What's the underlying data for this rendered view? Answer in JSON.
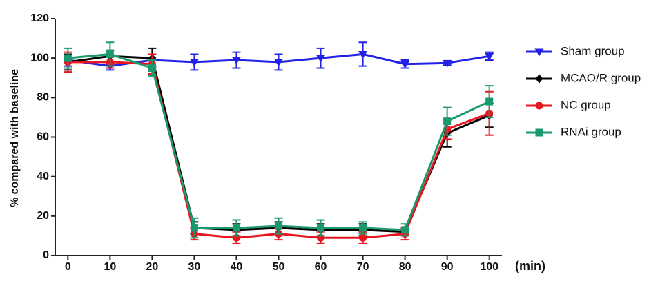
{
  "chart_data": {
    "type": "line",
    "y_label": "% compared with baseline",
    "x_label": "(min)",
    "x": [
      0,
      10,
      20,
      30,
      40,
      50,
      60,
      70,
      80,
      90,
      100
    ],
    "xlim": [
      -3,
      103
    ],
    "xticks": [
      0,
      10,
      20,
      30,
      40,
      50,
      60,
      70,
      80,
      90,
      100
    ],
    "ylim": [
      0,
      120
    ],
    "yticks": [
      0,
      20,
      40,
      60,
      80,
      100,
      120
    ],
    "series": [
      {
        "name": "Sham group",
        "color": "#2222e6",
        "marker": "triangle-down",
        "values": [
          99,
          96,
          99,
          98,
          99,
          98,
          100,
          102,
          97,
          97.5,
          101
        ],
        "errors": [
          3,
          2,
          3,
          4,
          4,
          4,
          5,
          6,
          2,
          1,
          2
        ]
      },
      {
        "name": "MCAO/R group",
        "color": "#000000",
        "marker": "diamond",
        "values": [
          98,
          101,
          100,
          14,
          13,
          14,
          13,
          13,
          12,
          62,
          71
        ],
        "errors": [
          4,
          3,
          5,
          3,
          3,
          3,
          3,
          3,
          2,
          7,
          6
        ]
      },
      {
        "name": "NC group",
        "color": "#e8141e",
        "marker": "circle",
        "values": [
          98,
          98,
          97,
          11,
          9,
          11,
          9,
          9,
          11,
          64,
          72
        ],
        "errors": [
          5,
          3,
          5,
          3,
          3,
          3,
          3,
          3,
          3,
          5,
          11
        ]
      },
      {
        "name": "RNAi group",
        "color": "#1a9a6c",
        "marker": "square",
        "values": [
          100,
          102,
          95,
          14,
          14,
          15,
          14,
          14,
          13,
          68,
          78
        ],
        "errors": [
          5,
          6,
          4,
          5,
          4,
          4,
          4,
          3,
          3,
          7,
          8
        ]
      }
    ]
  }
}
